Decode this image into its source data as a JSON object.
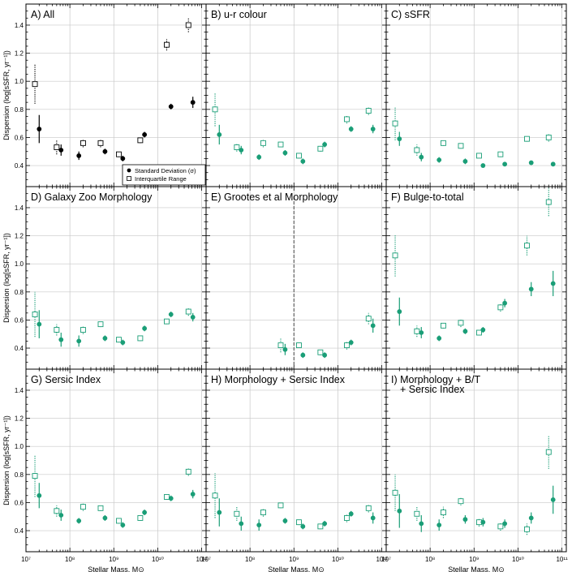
{
  "chart_data": [
    {
      "panel": "A",
      "title": "A) All",
      "color": "#000000",
      "sd": [
        [
          20000000.0,
          0.66,
          0.1
        ],
        [
          63000000.0,
          0.51,
          0.04
        ],
        [
          160000000.0,
          0.47,
          0.03
        ],
        [
          630000000.0,
          0.5,
          0.02
        ],
        [
          1600000000.0,
          0.45,
          0.02
        ],
        [
          5000000000.0,
          0.62,
          0.02
        ],
        [
          20000000000.0,
          0.82,
          0.02
        ],
        [
          63000000000.0,
          0.85,
          0.04
        ]
      ],
      "iqr": [
        [
          16000000.0,
          0.98,
          0.14
        ],
        [
          50000000.0,
          0.53,
          0.05
        ],
        [
          200000000.0,
          0.56,
          0.03
        ],
        [
          500000000.0,
          0.56,
          0.03
        ],
        [
          1300000000.0,
          0.48,
          0.02
        ],
        [
          4000000000.0,
          0.58,
          0.02
        ],
        [
          16000000000.0,
          1.26,
          0.04
        ],
        [
          50000000000.0,
          1.4,
          0.05
        ]
      ],
      "legend": [
        "Standard Deviation (σ)",
        "Interquartile Range"
      ]
    },
    {
      "panel": "B",
      "title": "B) u-r colour",
      "color": "#1a9e77",
      "sd": [
        [
          20000000.0,
          0.62,
          0.07
        ],
        [
          63000000.0,
          0.51,
          0.03
        ],
        [
          160000000.0,
          0.46,
          0.02
        ],
        [
          630000000.0,
          0.49,
          0.02
        ],
        [
          1600000000.0,
          0.43,
          0.02
        ],
        [
          5000000000.0,
          0.55,
          0.02
        ],
        [
          20000000000.0,
          0.66,
          0.02
        ],
        [
          63000000000.0,
          0.66,
          0.03
        ]
      ],
      "iqr": [
        [
          16000000.0,
          0.8,
          0.12
        ],
        [
          50000000.0,
          0.53,
          0.03
        ],
        [
          200000000.0,
          0.56,
          0.03
        ],
        [
          500000000.0,
          0.55,
          0.02
        ],
        [
          1300000000.0,
          0.47,
          0.02
        ],
        [
          4000000000.0,
          0.52,
          0.02
        ],
        [
          16000000000.0,
          0.73,
          0.03
        ],
        [
          50000000000.0,
          0.79,
          0.03
        ]
      ]
    },
    {
      "panel": "C",
      "title": "C) sSFR",
      "color": "#1a9e77",
      "sd": [
        [
          20000000.0,
          0.59,
          0.05
        ],
        [
          63000000.0,
          0.46,
          0.03
        ],
        [
          160000000.0,
          0.44,
          0.02
        ],
        [
          630000000.0,
          0.43,
          0.02
        ],
        [
          1600000000.0,
          0.4,
          0.01
        ],
        [
          5000000000.0,
          0.41,
          0.01
        ],
        [
          20000000000.0,
          0.42,
          0.01
        ],
        [
          63000000000.0,
          0.41,
          0.01
        ]
      ],
      "iqr": [
        [
          16000000.0,
          0.7,
          0.12
        ],
        [
          50000000.0,
          0.51,
          0.04
        ],
        [
          200000000.0,
          0.56,
          0.02
        ],
        [
          500000000.0,
          0.54,
          0.02
        ],
        [
          1300000000.0,
          0.47,
          0.01
        ],
        [
          4000000000.0,
          0.48,
          0.02
        ],
        [
          16000000000.0,
          0.59,
          0.02
        ],
        [
          50000000000.0,
          0.6,
          0.03
        ]
      ]
    },
    {
      "panel": "D",
      "title": "D) Galaxy Zoo Morphology",
      "color": "#1a9e77",
      "sd": [
        [
          20000000.0,
          0.57,
          0.1
        ],
        [
          63000000.0,
          0.46,
          0.05
        ],
        [
          160000000.0,
          0.45,
          0.04
        ],
        [
          630000000.0,
          0.47,
          0.02
        ],
        [
          1600000000.0,
          0.44,
          0.02
        ],
        [
          5000000000.0,
          0.54,
          0.02
        ],
        [
          20000000000.0,
          0.64,
          0.02
        ],
        [
          63000000000.0,
          0.62,
          0.03
        ]
      ],
      "iqr": [
        [
          16000000.0,
          0.64,
          0.16
        ],
        [
          50000000.0,
          0.53,
          0.04
        ],
        [
          200000000.0,
          0.53,
          0.03
        ],
        [
          500000000.0,
          0.57,
          0.02
        ],
        [
          1300000000.0,
          0.46,
          0.02
        ],
        [
          4000000000.0,
          0.47,
          0.02
        ],
        [
          16000000000.0,
          0.59,
          0.02
        ],
        [
          50000000000.0,
          0.66,
          0.03
        ]
      ]
    },
    {
      "panel": "E",
      "title": "E) Grootes et al Morphology",
      "color": "#1a9e77",
      "vline": 1000000000.0,
      "sd": [
        [
          630000000.0,
          0.39,
          0.04
        ],
        [
          1600000000.0,
          0.35,
          0.02
        ],
        [
          5000000000.0,
          0.35,
          0.02
        ],
        [
          20000000000.0,
          0.44,
          0.02
        ],
        [
          63000000000.0,
          0.56,
          0.05
        ]
      ],
      "iqr": [
        [
          500000000.0,
          0.42,
          0.05
        ],
        [
          1300000000.0,
          0.42,
          0.02
        ],
        [
          4000000000.0,
          0.37,
          0.02
        ],
        [
          16000000000.0,
          0.42,
          0.03
        ],
        [
          50000000000.0,
          0.61,
          0.04
        ]
      ]
    },
    {
      "panel": "F",
      "title": "F) Bulge-to-total",
      "color": "#1a9e77",
      "sd": [
        [
          20000000.0,
          0.66,
          0.1
        ],
        [
          63000000.0,
          0.51,
          0.04
        ],
        [
          160000000.0,
          0.47,
          0.02
        ],
        [
          630000000.0,
          0.52,
          0.02
        ],
        [
          1600000000.0,
          0.53,
          0.02
        ],
        [
          5000000000.0,
          0.72,
          0.03
        ],
        [
          20000000000.0,
          0.82,
          0.05
        ],
        [
          63000000000.0,
          0.86,
          0.09
        ]
      ],
      "iqr": [
        [
          16000000.0,
          1.06,
          0.15
        ],
        [
          50000000.0,
          0.52,
          0.04
        ],
        [
          200000000.0,
          0.56,
          0.02
        ],
        [
          500000000.0,
          0.58,
          0.03
        ],
        [
          1300000000.0,
          0.51,
          0.02
        ],
        [
          4000000000.0,
          0.69,
          0.03
        ],
        [
          16000000000.0,
          1.13,
          0.07
        ],
        [
          50000000000.0,
          1.44,
          0.1
        ]
      ]
    },
    {
      "panel": "G",
      "title": "G) Sersic Index",
      "color": "#1a9e77",
      "sd": [
        [
          20000000.0,
          0.65,
          0.09
        ],
        [
          63000000.0,
          0.51,
          0.04
        ],
        [
          160000000.0,
          0.47,
          0.02
        ],
        [
          630000000.0,
          0.49,
          0.02
        ],
        [
          1600000000.0,
          0.44,
          0.02
        ],
        [
          5000000000.0,
          0.53,
          0.02
        ],
        [
          20000000000.0,
          0.63,
          0.02
        ],
        [
          63000000000.0,
          0.66,
          0.03
        ]
      ],
      "iqr": [
        [
          16000000.0,
          0.79,
          0.15
        ],
        [
          50000000.0,
          0.54,
          0.04
        ],
        [
          200000000.0,
          0.57,
          0.03
        ],
        [
          500000000.0,
          0.56,
          0.02
        ],
        [
          1300000000.0,
          0.47,
          0.02
        ],
        [
          4000000000.0,
          0.49,
          0.02
        ],
        [
          16000000000.0,
          0.64,
          0.02
        ],
        [
          50000000000.0,
          0.82,
          0.03
        ]
      ]
    },
    {
      "panel": "H",
      "title": "H) Morphology + Sersic Index",
      "color": "#1a9e77",
      "sd": [
        [
          20000000.0,
          0.53,
          0.1
        ],
        [
          63000000.0,
          0.45,
          0.05
        ],
        [
          160000000.0,
          0.44,
          0.04
        ],
        [
          630000000.0,
          0.47,
          0.02
        ],
        [
          1600000000.0,
          0.43,
          0.02
        ],
        [
          5000000000.0,
          0.45,
          0.02
        ],
        [
          20000000000.0,
          0.52,
          0.02
        ],
        [
          63000000000.0,
          0.49,
          0.04
        ]
      ],
      "iqr": [
        [
          16000000.0,
          0.65,
          0.16
        ],
        [
          50000000.0,
          0.52,
          0.05
        ],
        [
          200000000.0,
          0.53,
          0.03
        ],
        [
          500000000.0,
          0.58,
          0.02
        ],
        [
          1300000000.0,
          0.46,
          0.02
        ],
        [
          4000000000.0,
          0.43,
          0.02
        ],
        [
          16000000000.0,
          0.49,
          0.03
        ],
        [
          50000000000.0,
          0.56,
          0.03
        ]
      ]
    },
    {
      "panel": "I",
      "title": "I) Morphology + B/T",
      "title2": "+ Sersic Index",
      "color": "#1a9e77",
      "sd": [
        [
          20000000.0,
          0.54,
          0.12
        ],
        [
          63000000.0,
          0.45,
          0.06
        ],
        [
          160000000.0,
          0.44,
          0.04
        ],
        [
          630000000.0,
          0.48,
          0.03
        ],
        [
          1600000000.0,
          0.46,
          0.03
        ],
        [
          5000000000.0,
          0.45,
          0.03
        ],
        [
          20000000000.0,
          0.49,
          0.04
        ],
        [
          63000000000.0,
          0.62,
          0.1
        ]
      ],
      "iqr": [
        [
          16000000.0,
          0.67,
          0.13
        ],
        [
          50000000.0,
          0.52,
          0.05
        ],
        [
          200000000.0,
          0.53,
          0.04
        ],
        [
          500000000.0,
          0.61,
          0.03
        ],
        [
          1300000000.0,
          0.46,
          0.03
        ],
        [
          4000000000.0,
          0.43,
          0.03
        ],
        [
          16000000000.0,
          0.41,
          0.04
        ],
        [
          50000000000.0,
          0.96,
          0.12
        ]
      ]
    }
  ],
  "axes": {
    "ylabel": "Dispersion (log[sSFR, yr⁻¹])",
    "xlabel": "Stellar Mass, M⊙",
    "xscale": "log",
    "xlim": [
      10000000.0,
      126000000000.0
    ],
    "ylim": [
      0.25,
      1.55
    ],
    "yticks": [
      0.4,
      0.6,
      0.8,
      1.0,
      1.2,
      1.4
    ],
    "xtick_labels": [
      "10⁷",
      "10⁸",
      "10⁹",
      "10¹⁰",
      "10¹¹"
    ],
    "grid": true
  }
}
